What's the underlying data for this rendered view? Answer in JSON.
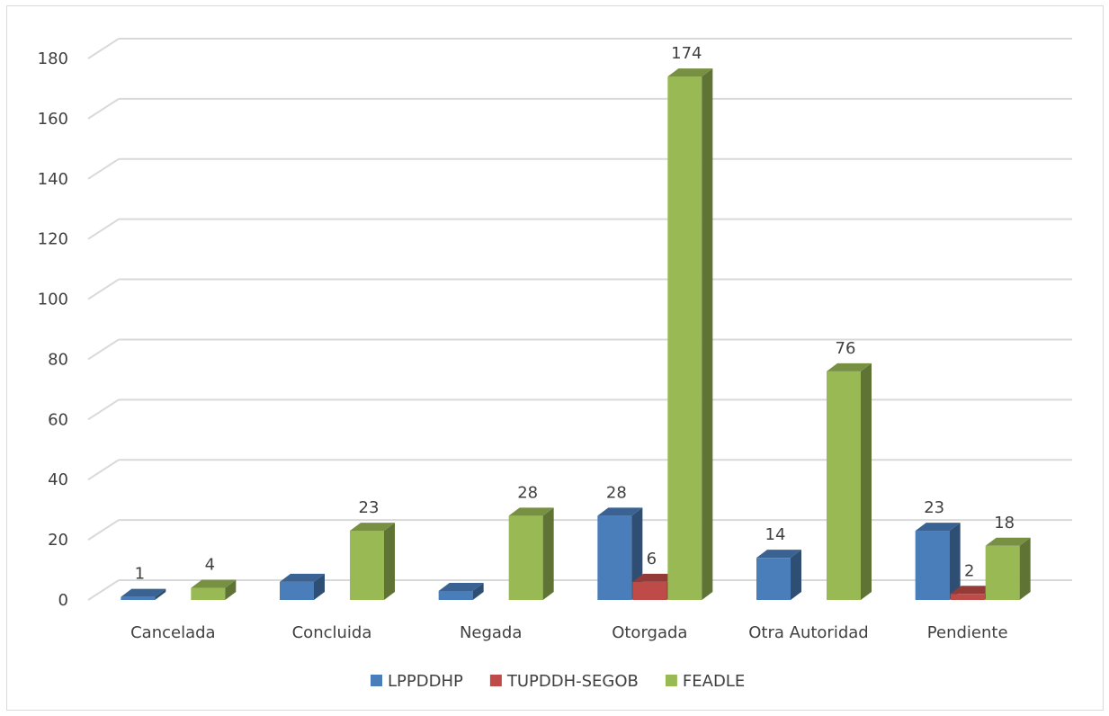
{
  "chart_data": {
    "type": "bar",
    "style": "3d-clustered-column",
    "categories": [
      "Cancelada",
      "Concluida",
      "Negada",
      "Otorgada",
      "Otra Autoridad",
      "Pendiente"
    ],
    "series": [
      {
        "name": "LPPDDHP",
        "color": "#4a7ebb",
        "values": [
          1,
          6,
          3,
          28,
          14,
          23
        ]
      },
      {
        "name": "TUPDDH-SEGOB",
        "color": "#be4b48",
        "values": [
          0,
          0,
          0,
          6,
          0,
          2
        ]
      },
      {
        "name": "FEADLE",
        "color": "#98b954",
        "values": [
          4,
          23,
          28,
          174,
          76,
          18
        ]
      }
    ],
    "ylim": [
      0,
      180
    ],
    "yticks": [
      "0",
      "20",
      "40",
      "60",
      "80",
      "100",
      "120",
      "140",
      "160",
      "180"
    ],
    "data_labels": [
      [
        "1",
        "",
        "",
        "28",
        "14",
        "23"
      ],
      [
        "",
        "",
        "",
        "6",
        "",
        "2"
      ],
      [
        "4",
        "23",
        "28",
        "174",
        "76",
        "18"
      ]
    ],
    "grid": true,
    "legend_position": "bottom"
  }
}
